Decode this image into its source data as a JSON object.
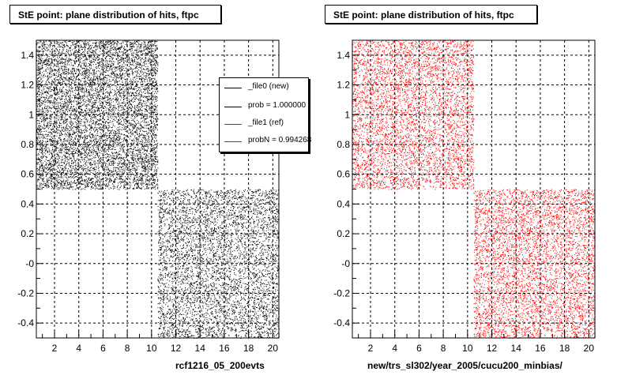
{
  "colors": {
    "new": "#000000",
    "ref": "#ff0000",
    "background": "#ffffff",
    "grid": "#000000"
  },
  "chart_data": [
    {
      "type": "scatter",
      "title": "StE point: plane distribution of hits, ftpc",
      "xlabel": "rcf1216_05_200evts",
      "ylabel": "",
      "xlim": [
        0.5,
        20.5
      ],
      "ylim": [
        -0.5,
        1.5
      ],
      "xticks": [
        "2",
        "4",
        "6",
        "8",
        "10",
        "12",
        "14",
        "16",
        "18",
        "20"
      ],
      "yticks": [
        "-0.4",
        "-0.2",
        "-0",
        "0.2",
        "0.4",
        "0.6",
        "0.8",
        "1",
        "1.2",
        "1.4"
      ],
      "grid": true,
      "legend_position": "top-right",
      "series": [
        {
          "name": "_file0 (new)",
          "color": "#000000",
          "regions": [
            {
              "x": [
                0.5,
                10.5
              ],
              "y": [
                0.5,
                1.5
              ]
            },
            {
              "x": [
                10.5,
                20.5
              ],
              "y": [
                -0.5,
                0.5
              ]
            }
          ]
        }
      ],
      "legend": [
        "_file0 (new)",
        "prob = 1.000000",
        "_file1 (ref)",
        "probN = 0.994268"
      ]
    },
    {
      "type": "scatter",
      "title": "StE point: plane distribution of hits, ftpc",
      "xlabel": "new/trs_sl302/year_2005/cucu200_minbias/",
      "ylabel": "",
      "xlim": [
        0.5,
        20.5
      ],
      "ylim": [
        -0.5,
        1.5
      ],
      "xticks": [
        "2",
        "4",
        "6",
        "8",
        "10",
        "12",
        "14",
        "16",
        "18",
        "20"
      ],
      "yticks": [
        "-0.4",
        "-0.2",
        "-0",
        "0.2",
        "0.4",
        "0.6",
        "0.8",
        "1",
        "1.2",
        "1.4"
      ],
      "grid": true,
      "series": [
        {
          "name": "",
          "color": "#ff0000",
          "regions": [
            {
              "x": [
                0.5,
                10.5
              ],
              "y": [
                0.5,
                1.5
              ]
            },
            {
              "x": [
                10.5,
                20.5
              ],
              "y": [
                -0.5,
                0.5
              ]
            }
          ]
        }
      ]
    }
  ]
}
